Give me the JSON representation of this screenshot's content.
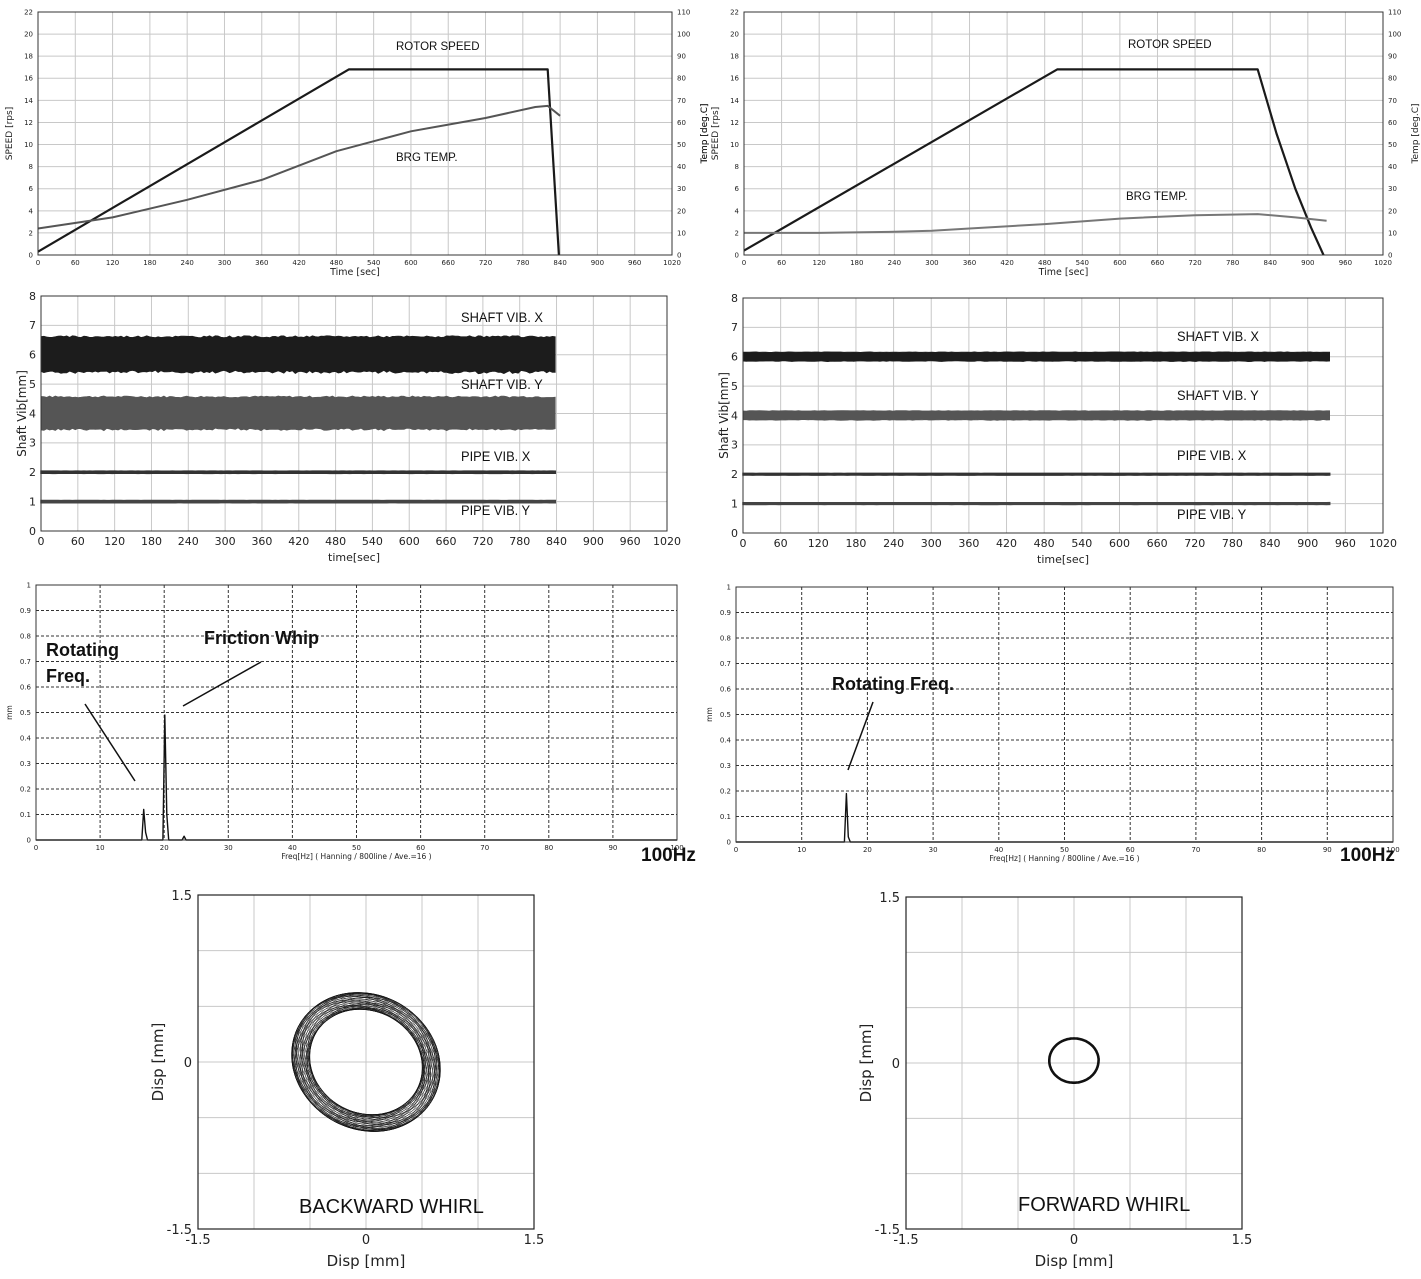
{
  "footer": {
    "left_hz": "100Hz",
    "right_hz": "100Hz"
  },
  "chart_data": [
    {
      "id": "tl",
      "type": "line",
      "xlabel": "Time [sec]",
      "ylabel": "SPEED [rps]",
      "ylabel_right": "Temp [deg.C]",
      "xlim": [
        0,
        1020
      ],
      "ylim": [
        0,
        22
      ],
      "ylim_right": [
        0,
        110
      ],
      "xticks": [
        0,
        60,
        120,
        180,
        240,
        300,
        360,
        420,
        480,
        540,
        600,
        660,
        720,
        780,
        840,
        900,
        960,
        1020
      ],
      "yticks": [
        0,
        2,
        4,
        6,
        8,
        10,
        12,
        14,
        16,
        18,
        20,
        22
      ],
      "yticks_right": [
        0,
        10,
        20,
        30,
        40,
        50,
        60,
        70,
        80,
        90,
        100,
        110
      ],
      "grid": true,
      "annotations": [
        {
          "text": "ROTOR SPEED"
        },
        {
          "text": "BRG TEMP."
        }
      ],
      "series": [
        {
          "name": "ROTOR SPEED",
          "axis": "left",
          "x": [
            0,
            500,
            820,
            838
          ],
          "y": [
            0.3,
            16.8,
            16.8,
            0
          ]
        },
        {
          "name": "BRG TEMP.",
          "axis": "right",
          "x": [
            0,
            120,
            240,
            360,
            480,
            600,
            720,
            800,
            820,
            840
          ],
          "y": [
            12,
            17,
            25,
            34,
            47,
            56,
            62,
            67,
            67.5,
            63
          ]
        }
      ]
    },
    {
      "id": "tr",
      "type": "line",
      "xlabel": "Time [sec]",
      "ylabel": "SPEED [rps]",
      "ylabel_right": "Temp [deg.C]",
      "ylabel_mid": "Temp [deg.C]",
      "xlim": [
        0,
        1020
      ],
      "ylim": [
        0,
        22
      ],
      "ylim_right": [
        0,
        110
      ],
      "xticks": [
        0,
        60,
        120,
        180,
        240,
        300,
        360,
        420,
        480,
        540,
        600,
        660,
        720,
        780,
        840,
        900,
        960,
        1020
      ],
      "yticks": [
        0,
        2,
        4,
        6,
        8,
        10,
        12,
        14,
        16,
        18,
        20,
        22
      ],
      "yticks_right": [
        0,
        10,
        20,
        30,
        40,
        50,
        60,
        70,
        80,
        90,
        100,
        110
      ],
      "grid": true,
      "annotations": [
        {
          "text": "ROTOR SPEED"
        },
        {
          "text": "BRG TEMP."
        }
      ],
      "series": [
        {
          "name": "ROTOR SPEED",
          "axis": "left",
          "x": [
            0,
            500,
            820,
            850,
            880,
            905,
            925
          ],
          "y": [
            0.4,
            16.8,
            16.8,
            11,
            6,
            2.5,
            0
          ]
        },
        {
          "name": "BRG TEMP.",
          "axis": "right",
          "x": [
            0,
            120,
            240,
            300,
            360,
            480,
            600,
            720,
            820,
            880,
            930
          ],
          "y": [
            10,
            10,
            10.5,
            11,
            12,
            14,
            16.5,
            18,
            18.5,
            17,
            15.5
          ]
        }
      ]
    },
    {
      "id": "ml",
      "type": "line",
      "xlabel": "time[sec]",
      "ylabel": "Shaft Vib[mm]",
      "xlim": [
        0,
        1020
      ],
      "ylim": [
        0,
        8
      ],
      "xticks": [
        0,
        60,
        120,
        180,
        240,
        300,
        360,
        420,
        480,
        540,
        600,
        660,
        720,
        780,
        840,
        900,
        960,
        1020
      ],
      "yticks": [
        0,
        1,
        2,
        3,
        4,
        5,
        6,
        7,
        8
      ],
      "grid": true,
      "annotations": [
        {
          "text": "SHAFT VIB. X"
        },
        {
          "text": "SHAFT VIB. Y"
        },
        {
          "text": "PIPE VIB. X"
        },
        {
          "text": "PIPE VIB. Y"
        }
      ],
      "series": [
        {
          "name": "SHAFT VIB. X",
          "x_start": 0,
          "x_end": 838,
          "center": 6.0,
          "amplitude": 0.65
        },
        {
          "name": "SHAFT VIB. Y",
          "x_start": 0,
          "x_end": 838,
          "center": 4.0,
          "amplitude": 0.6
        },
        {
          "name": "PIPE VIB. X",
          "x_start": 0,
          "x_end": 838,
          "center": 2.0,
          "amplitude": 0.04
        },
        {
          "name": "PIPE VIB. Y",
          "x_start": 0,
          "x_end": 838,
          "center": 1.0,
          "amplitude": 0.04
        }
      ]
    },
    {
      "id": "mr",
      "type": "line",
      "xlabel": "time[sec]",
      "ylabel": "Shaft Vib[mm]",
      "xlim": [
        0,
        1020
      ],
      "ylim": [
        0,
        8
      ],
      "xticks": [
        0,
        60,
        120,
        180,
        240,
        300,
        360,
        420,
        480,
        540,
        600,
        660,
        720,
        780,
        840,
        900,
        960,
        1020
      ],
      "yticks": [
        0,
        1,
        2,
        3,
        4,
        5,
        6,
        7,
        8
      ],
      "grid": true,
      "annotations": [
        {
          "text": "SHAFT VIB. X"
        },
        {
          "text": "SHAFT VIB. Y"
        },
        {
          "text": "PIPE VIB. X"
        },
        {
          "text": "PIPE VIB. Y"
        }
      ],
      "series": [
        {
          "name": "SHAFT VIB. X",
          "x_start": 0,
          "x_end": 935,
          "center": 6.0,
          "amplitude": 0.17
        },
        {
          "name": "SHAFT VIB. Y",
          "x_start": 0,
          "x_end": 935,
          "center": 4.0,
          "amplitude": 0.17
        },
        {
          "name": "PIPE VIB. X",
          "x_start": 0,
          "x_end": 935,
          "center": 2.0,
          "amplitude": 0.03
        },
        {
          "name": "PIPE VIB. Y",
          "x_start": 0,
          "x_end": 935,
          "center": 1.0,
          "amplitude": 0.03
        }
      ]
    },
    {
      "id": "sl",
      "type": "line",
      "xlabel": "Freq[Hz] ( Hanning / 800line / Ave.=16 )",
      "ylabel": "mm",
      "xlim": [
        0,
        100
      ],
      "ylim": [
        0,
        1
      ],
      "xticks": [
        0,
        10,
        20,
        30,
        40,
        50,
        60,
        70,
        80,
        90,
        100
      ],
      "yticks": [
        0,
        0.1,
        0.2,
        0.3,
        0.4,
        0.5,
        0.6,
        0.7,
        0.8,
        0.9,
        1
      ],
      "grid": true,
      "annotations": [
        {
          "text": "Rotating"
        },
        {
          "text": "Freq."
        },
        {
          "text": "Friction Whip"
        }
      ],
      "series": [
        {
          "name": "spectrum",
          "x": [
            0,
            16.5,
            16.8,
            17.1,
            17.4,
            19.8,
            20.1,
            20.4,
            20.7,
            22.8,
            23.1,
            23.4,
            100
          ],
          "y": [
            0,
            0,
            0.12,
            0.03,
            0,
            0,
            0.49,
            0.1,
            0,
            0,
            0.015,
            0,
            0
          ]
        }
      ]
    },
    {
      "id": "sr",
      "type": "line",
      "xlabel": "Freq[Hz] ( Hanning / 800line / Ave.=16 )",
      "ylabel": "mm",
      "xlim": [
        0,
        100
      ],
      "ylim": [
        0,
        1
      ],
      "xticks": [
        0,
        10,
        20,
        30,
        40,
        50,
        60,
        70,
        80,
        90,
        100
      ],
      "yticks": [
        0,
        0.1,
        0.2,
        0.3,
        0.4,
        0.5,
        0.6,
        0.7,
        0.8,
        0.9,
        1
      ],
      "grid": true,
      "annotations": [
        {
          "text": "Rotating Freq."
        }
      ],
      "series": [
        {
          "name": "spectrum",
          "x": [
            0,
            16.5,
            16.8,
            17.1,
            17.4,
            100
          ],
          "y": [
            0,
            0,
            0.19,
            0.02,
            0,
            0
          ]
        }
      ]
    },
    {
      "id": "ol",
      "type": "line",
      "xlabel": "Disp [mm]",
      "ylabel": "Disp [mm]",
      "xlim": [
        -1.5,
        1.5
      ],
      "ylim": [
        -1.5,
        1.5
      ],
      "xtick_labels": [
        "-1.5",
        "0",
        "1.5"
      ],
      "ytick_labels": [
        "-1.5",
        "0",
        "1.5"
      ],
      "grid": true,
      "annotations": [
        {
          "text": "BACKWARD WHIRL"
        }
      ],
      "orbit": {
        "center": [
          0,
          0
        ],
        "rx": 0.6,
        "ry": 0.53,
        "tilt_deg": -30,
        "band": 0.28,
        "loops": 45
      }
    },
    {
      "id": "or",
      "type": "line",
      "xlabel": "Disp [mm]",
      "ylabel": "Disp [mm]",
      "xlim": [
        -1.5,
        1.5
      ],
      "ylim": [
        -1.5,
        1.5
      ],
      "xtick_labels": [
        "-1.5",
        "0",
        "1.5"
      ],
      "ytick_labels": [
        "-1.5",
        "0",
        "1.5"
      ],
      "grid": true,
      "annotations": [
        {
          "text": "FORWARD WHIRL"
        }
      ],
      "orbit": {
        "center": [
          0,
          0.02
        ],
        "rx": 0.22,
        "ry": 0.2,
        "tilt_deg": 0,
        "band": 0.02,
        "loops": 1
      }
    }
  ]
}
